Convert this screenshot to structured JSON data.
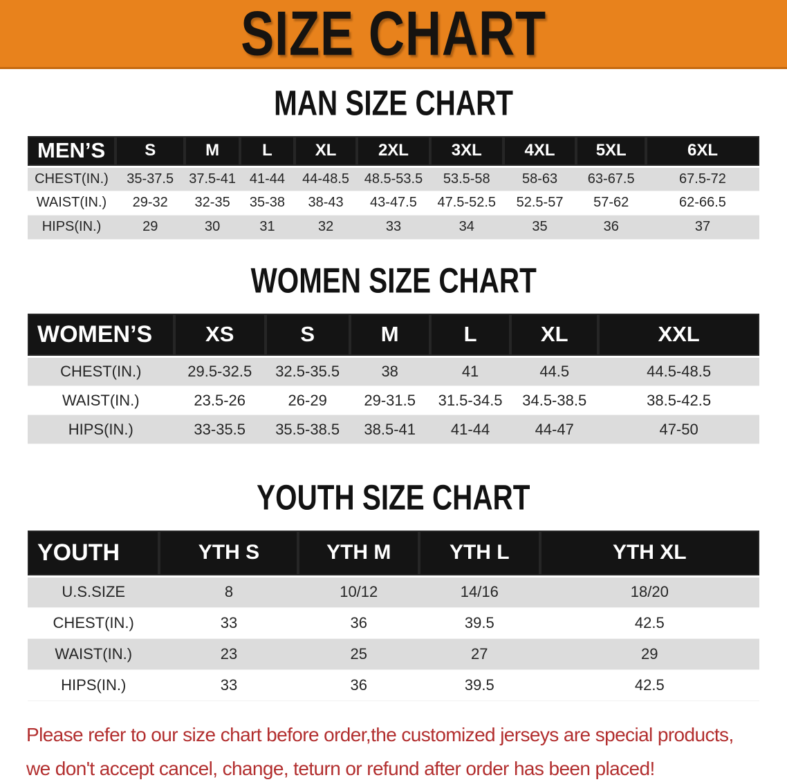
{
  "banner": {
    "title": "SIZE CHART"
  },
  "sections": [
    {
      "heading": "MAN SIZE CHART",
      "table": {
        "header_label": "MEN’S",
        "columns": [
          "S",
          "M",
          "L",
          "XL",
          "2XL",
          "3XL",
          "4XL",
          "5XL",
          "6XL"
        ],
        "rows": [
          {
            "label": "CHEST(IN.)",
            "values": [
              "35-37.5",
              "37.5-41",
              "41-44",
              "44-48.5",
              "48.5-53.5",
              "53.5-58",
              "58-63",
              "63-67.5",
              "67.5-72"
            ]
          },
          {
            "label": "WAIST(IN.)",
            "values": [
              "29-32",
              "32-35",
              "35-38",
              "38-43",
              "43-47.5",
              "47.5-52.5",
              "52.5-57",
              "57-62",
              "62-66.5"
            ]
          },
          {
            "label": "HIPS(IN.)",
            "values": [
              "29",
              "30",
              "31",
              "32",
              "33",
              "34",
              "35",
              "36",
              "37"
            ]
          }
        ]
      }
    },
    {
      "heading": "WOMEN SIZE CHART",
      "table": {
        "header_label": "WOMEN’S",
        "columns": [
          "XS",
          "S",
          "M",
          "L",
          "XL",
          "XXL"
        ],
        "rows": [
          {
            "label": "CHEST(IN.)",
            "values": [
              "29.5-32.5",
              "32.5-35.5",
              "38",
              "41",
              "44.5",
              "44.5-48.5"
            ]
          },
          {
            "label": "WAIST(IN.)",
            "values": [
              "23.5-26",
              "26-29",
              "29-31.5",
              "31.5-34.5",
              "34.5-38.5",
              "38.5-42.5"
            ]
          },
          {
            "label": "HIPS(IN.)",
            "values": [
              "33-35.5",
              "35.5-38.5",
              "38.5-41",
              "41-44",
              "44-47",
              "47-50"
            ]
          }
        ]
      }
    },
    {
      "heading": "YOUTH SIZE CHART",
      "table": {
        "header_label": "YOUTH",
        "columns": [
          "YTH S",
          "YTH M",
          "YTH L",
          "YTH XL"
        ],
        "rows": [
          {
            "label": "U.S.SIZE",
            "values": [
              "8",
              "10/12",
              "14/16",
              "18/20"
            ]
          },
          {
            "label": "CHEST(IN.)",
            "values": [
              "33",
              "36",
              "39.5",
              "42.5"
            ]
          },
          {
            "label": "WAIST(IN.)",
            "values": [
              "23",
              "25",
              "27",
              "29"
            ]
          },
          {
            "label": "HIPS(IN.)",
            "values": [
              "33",
              "36",
              "39.5",
              "42.5"
            ]
          }
        ]
      }
    }
  ],
  "disclaimer": {
    "line1": "Please refer to our size chart before order,the customized jerseys are special products,",
    "line2": "we don't accept cancel, change, teturn or refund after order has been placed!"
  },
  "colors": {
    "banner_bg": "#E8821C",
    "header_bar": "#141414",
    "row_alt": "#DCDCDC",
    "disclaimer_text": "#B22E2E"
  }
}
